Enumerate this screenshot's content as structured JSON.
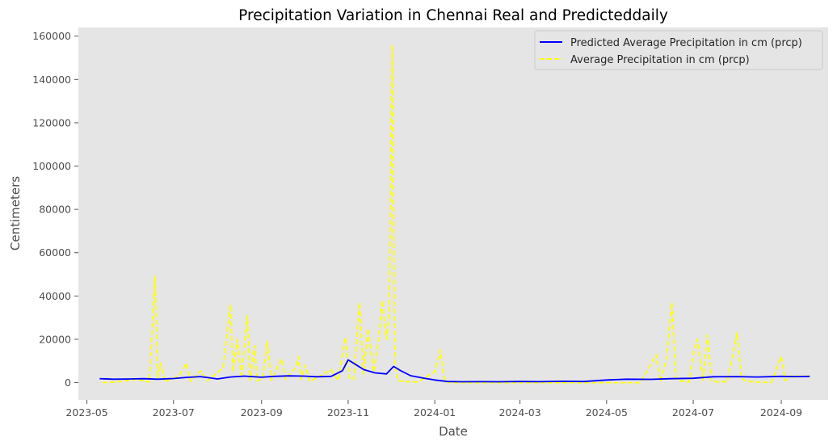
{
  "chart_data": {
    "type": "line",
    "title": "Precipitation Variation in Chennai Real and Predicteddaily",
    "xlabel": "Date",
    "ylabel": "Centimeters",
    "ylim": [
      -8000,
      164000
    ],
    "xlim": [
      "2023-04-25",
      "2024-10-04"
    ],
    "yticks": [
      0,
      20000,
      40000,
      60000,
      80000,
      100000,
      120000,
      140000,
      160000
    ],
    "xticks": [
      "2023-05",
      "2023-07",
      "2023-09",
      "2023-11",
      "2024-01",
      "2024-03",
      "2024-05",
      "2024-07",
      "2024-09"
    ],
    "background": "#e5e5e5",
    "grid": false,
    "legend_position": "top-right",
    "series": [
      {
        "name": "Predicted Average Precipitation in cm (prcp)",
        "color": "#0000ff",
        "style": "solid",
        "x": [
          "2023-05-10",
          "2023-05-20",
          "2023-06-01",
          "2023-06-10",
          "2023-06-20",
          "2023-07-01",
          "2023-07-10",
          "2023-07-20",
          "2023-08-01",
          "2023-08-10",
          "2023-08-20",
          "2023-09-01",
          "2023-09-10",
          "2023-09-20",
          "2023-10-01",
          "2023-10-10",
          "2023-10-20",
          "2023-10-28",
          "2023-11-01",
          "2023-11-06",
          "2023-11-12",
          "2023-11-20",
          "2023-11-28",
          "2023-12-03",
          "2023-12-08",
          "2023-12-15",
          "2023-12-25",
          "2024-01-01",
          "2024-01-10",
          "2024-01-20",
          "2024-02-01",
          "2024-02-15",
          "2024-03-01",
          "2024-03-15",
          "2024-04-01",
          "2024-04-15",
          "2024-05-01",
          "2024-05-15",
          "2024-06-01",
          "2024-06-15",
          "2024-07-01",
          "2024-07-15",
          "2024-08-01",
          "2024-08-15",
          "2024-09-01",
          "2024-09-10",
          "2024-09-21"
        ],
        "y": [
          1800,
          1600,
          1700,
          1800,
          1600,
          1900,
          2400,
          2800,
          1700,
          2600,
          3000,
          2500,
          2900,
          3100,
          3000,
          2700,
          2900,
          5500,
          10500,
          8500,
          6000,
          4500,
          4000,
          7500,
          5500,
          3200,
          2000,
          1200,
          500,
          400,
          450,
          400,
          500,
          450,
          600,
          500,
          1200,
          1600,
          1500,
          1800,
          2000,
          2700,
          2800,
          2600,
          2900,
          2800,
          2900
        ]
      },
      {
        "name": "Average Precipitation in cm (prcp)",
        "color": "#ffff00",
        "style": "dashed",
        "x": [
          "2023-05-12",
          "2023-05-25",
          "2023-06-05",
          "2023-06-14",
          "2023-06-18",
          "2023-06-20",
          "2023-06-22",
          "2023-06-25",
          "2023-07-05",
          "2023-07-10",
          "2023-07-13",
          "2023-07-20",
          "2023-07-25",
          "2023-08-05",
          "2023-08-10",
          "2023-08-12",
          "2023-08-15",
          "2023-08-18",
          "2023-08-22",
          "2023-08-24",
          "2023-08-27",
          "2023-08-29",
          "2023-09-02",
          "2023-09-05",
          "2023-09-08",
          "2023-09-15",
          "2023-09-18",
          "2023-09-25",
          "2023-09-27",
          "2023-09-29",
          "2023-10-02",
          "2023-10-05",
          "2023-10-12",
          "2023-10-20",
          "2023-10-25",
          "2023-10-30",
          "2023-11-02",
          "2023-11-05",
          "2023-11-09",
          "2023-11-12",
          "2023-11-15",
          "2023-11-19",
          "2023-11-22",
          "2023-11-25",
          "2023-11-28",
          "2023-11-30",
          "2023-12-02",
          "2023-12-04",
          "2023-12-06",
          "2023-12-10",
          "2023-12-20",
          "2024-01-01",
          "2024-01-05",
          "2024-01-08",
          "2024-01-12",
          "2024-02-01",
          "2024-03-01",
          "2024-04-01",
          "2024-05-01",
          "2024-05-25",
          "2024-06-05",
          "2024-06-08",
          "2024-06-12",
          "2024-06-16",
          "2024-06-19",
          "2024-06-22",
          "2024-06-28",
          "2024-07-01",
          "2024-07-04",
          "2024-07-08",
          "2024-07-11",
          "2024-07-14",
          "2024-07-18",
          "2024-07-25",
          "2024-08-01",
          "2024-08-04",
          "2024-08-08",
          "2024-08-15",
          "2024-08-25",
          "2024-09-01",
          "2024-09-04",
          "2024-09-08",
          "2024-09-21"
        ],
        "y": [
          0,
          500,
          1500,
          300,
          49000,
          2000,
          9000,
          500,
          3000,
          9000,
          600,
          5500,
          800,
          7000,
          36000,
          5000,
          20000,
          2000,
          31000,
          1000,
          17000,
          800,
          2000,
          19000,
          1000,
          11000,
          1500,
          7000,
          12000,
          1500,
          8000,
          600,
          3000,
          6000,
          1000,
          21000,
          2000,
          1500,
          37000,
          4000,
          25000,
          5000,
          17000,
          38000,
          20000,
          33000,
          156000,
          8000,
          1000,
          500,
          300,
          5000,
          15000,
          600,
          0,
          0,
          0,
          0,
          0,
          0,
          13000,
          500,
          10000,
          37000,
          2000,
          800,
          200,
          13000,
          20000,
          1000,
          22000,
          800,
          300,
          500,
          23000,
          2000,
          500,
          300,
          0,
          12000,
          800,
          3000,
          3000
        ]
      }
    ]
  }
}
